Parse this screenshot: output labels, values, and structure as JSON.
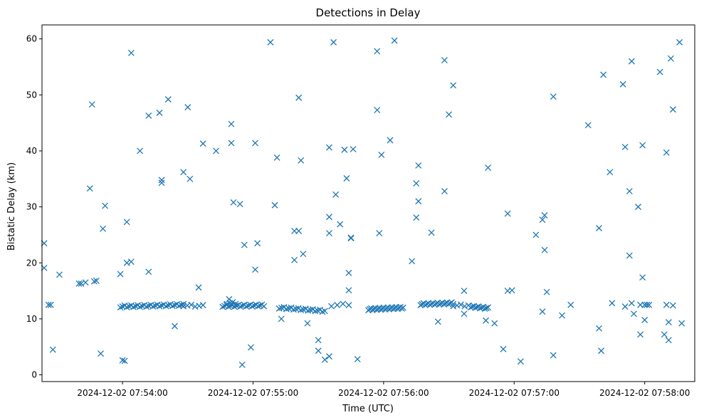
{
  "chart_data": {
    "type": "scatter",
    "title": "Detections in Delay",
    "xlabel": "Time (UTC)",
    "ylabel": "Bistatic Delay (km)",
    "x_unit": "time HH:MM:SS on 2024-12-02",
    "xlim": [
      "07:53:23",
      "07:58:23"
    ],
    "ylim": [
      -1.2,
      62.5
    ],
    "x_ticks": [
      "2024-12-02 07:54:00",
      "2024-12-02 07:55:00",
      "2024-12-02 07:56:00",
      "2024-12-02 07:57:00",
      "2024-12-02 07:58:00"
    ],
    "y_ticks": [
      "0",
      "10",
      "20",
      "30",
      "40",
      "50",
      "60"
    ],
    "marker": "x",
    "color": "#1f77b4",
    "grid": false,
    "points": [
      [
        "07:53:24",
        23.5
      ],
      [
        "07:53:24",
        19.1
      ],
      [
        "07:53:26",
        12.5
      ],
      [
        "07:53:27",
        12.5
      ],
      [
        "07:53:28",
        4.5
      ],
      [
        "07:53:31",
        17.9
      ],
      [
        "07:53:40",
        16.3
      ],
      [
        "07:53:41",
        16.3
      ],
      [
        "07:53:43",
        16.5
      ],
      [
        "07:53:45",
        33.3
      ],
      [
        "07:53:46",
        48.3
      ],
      [
        "07:53:47",
        16.7
      ],
      [
        "07:53:48",
        16.8
      ],
      [
        "07:53:50",
        3.8
      ],
      [
        "07:53:51",
        26.1
      ],
      [
        "07:53:52",
        30.2
      ],
      [
        "07:53:59",
        18.0
      ],
      [
        "07:54:00",
        2.6
      ],
      [
        "07:54:01",
        2.5
      ],
      [
        "07:54:02",
        27.3
      ],
      [
        "07:54:02",
        20.0
      ],
      [
        "07:54:04",
        57.5
      ],
      [
        "07:54:04",
        20.2
      ],
      [
        "07:54:08",
        40.0
      ],
      [
        "07:54:12",
        46.3
      ],
      [
        "07:54:12",
        18.4
      ],
      [
        "07:54:17",
        46.8
      ],
      [
        "07:54:18",
        34.8
      ],
      [
        "07:54:18",
        34.3
      ],
      [
        "07:54:21",
        49.2
      ],
      [
        "07:54:24",
        8.7
      ],
      [
        "07:54:28",
        36.2
      ],
      [
        "07:54:30",
        47.8
      ],
      [
        "07:54:31",
        35.0
      ],
      [
        "07:54:35",
        15.6
      ],
      [
        "07:54:37",
        41.3
      ],
      [
        "07:54:43",
        40.0
      ],
      [
        "07:54:49",
        13.5
      ],
      [
        "07:54:50",
        44.8
      ],
      [
        "07:54:50",
        41.4
      ],
      [
        "07:54:51",
        30.8
      ],
      [
        "07:54:54",
        30.5
      ],
      [
        "07:54:55",
        1.8
      ],
      [
        "07:54:56",
        23.2
      ],
      [
        "07:54:59",
        4.9
      ],
      [
        "07:55:01",
        41.4
      ],
      [
        "07:55:01",
        18.8
      ],
      [
        "07:55:02",
        23.5
      ],
      [
        "07:55:08",
        59.4
      ],
      [
        "07:55:10",
        30.3
      ],
      [
        "07:55:11",
        38.8
      ],
      [
        "07:55:13",
        10.0
      ],
      [
        "07:55:19",
        25.7
      ],
      [
        "07:55:19",
        20.5
      ],
      [
        "07:55:21",
        25.7
      ],
      [
        "07:55:21",
        49.5
      ],
      [
        "07:55:22",
        38.3
      ],
      [
        "07:55:23",
        21.6
      ],
      [
        "07:55:25",
        9.2
      ],
      [
        "07:55:30",
        6.2
      ],
      [
        "07:55:30",
        4.3
      ],
      [
        "07:55:33",
        2.7
      ],
      [
        "07:55:35",
        25.3
      ],
      [
        "07:55:35",
        28.2
      ],
      [
        "07:55:35",
        40.6
      ],
      [
        "07:55:35",
        3.3
      ],
      [
        "07:55:37",
        59.4
      ],
      [
        "07:55:38",
        32.2
      ],
      [
        "07:55:40",
        26.9
      ],
      [
        "07:55:42",
        40.2
      ],
      [
        "07:55:43",
        35.1
      ],
      [
        "07:55:44",
        18.2
      ],
      [
        "07:55:44",
        15.1
      ],
      [
        "07:55:45",
        24.5
      ],
      [
        "07:55:45",
        24.4
      ],
      [
        "07:55:46",
        40.3
      ],
      [
        "07:55:48",
        2.8
      ],
      [
        "07:55:57",
        57.8
      ],
      [
        "07:55:57",
        47.3
      ],
      [
        "07:55:58",
        25.3
      ],
      [
        "07:55:59",
        39.3
      ],
      [
        "07:56:03",
        41.9
      ],
      [
        "07:56:05",
        59.7
      ],
      [
        "07:56:13",
        20.3
      ],
      [
        "07:56:15",
        28.1
      ],
      [
        "07:56:15",
        34.2
      ],
      [
        "07:56:16",
        37.4
      ],
      [
        "07:56:16",
        31.0
      ],
      [
        "07:56:22",
        25.4
      ],
      [
        "07:56:25",
        9.5
      ],
      [
        "07:56:28",
        56.2
      ],
      [
        "07:56:28",
        32.8
      ],
      [
        "07:56:30",
        46.5
      ],
      [
        "07:56:32",
        51.7
      ],
      [
        "07:56:37",
        15.0
      ],
      [
        "07:56:37",
        10.9
      ],
      [
        "07:56:47",
        9.7
      ],
      [
        "07:56:48",
        37.0
      ],
      [
        "07:56:51",
        9.2
      ],
      [
        "07:56:55",
        4.6
      ],
      [
        "07:56:57",
        28.8
      ],
      [
        "07:56:57",
        15.0
      ],
      [
        "07:56:59",
        15.1
      ],
      [
        "07:57:03",
        2.4
      ],
      [
        "07:57:10",
        25.0
      ],
      [
        "07:57:13",
        11.3
      ],
      [
        "07:57:13",
        27.7
      ],
      [
        "07:57:14",
        28.5
      ],
      [
        "07:57:14",
        22.3
      ],
      [
        "07:57:15",
        14.8
      ],
      [
        "07:57:18",
        49.7
      ],
      [
        "07:57:18",
        3.5
      ],
      [
        "07:57:22",
        10.6
      ],
      [
        "07:57:26",
        12.5
      ],
      [
        "07:57:34",
        44.6
      ],
      [
        "07:57:39",
        26.2
      ],
      [
        "07:57:39",
        8.3
      ],
      [
        "07:57:40",
        4.3
      ],
      [
        "07:57:41",
        53.6
      ],
      [
        "07:57:44",
        36.2
      ],
      [
        "07:57:45",
        12.8
      ],
      [
        "07:57:50",
        51.9
      ],
      [
        "07:57:51",
        40.7
      ],
      [
        "07:57:51",
        12.2
      ],
      [
        "07:57:53",
        32.8
      ],
      [
        "07:57:53",
        21.3
      ],
      [
        "07:57:54",
        56.0
      ],
      [
        "07:57:54",
        12.8
      ],
      [
        "07:57:55",
        10.9
      ],
      [
        "07:57:57",
        30.0
      ],
      [
        "07:57:58",
        12.5
      ],
      [
        "07:57:58",
        7.2
      ],
      [
        "07:57:59",
        17.4
      ],
      [
        "07:57:59",
        41.0
      ],
      [
        "07:58:00",
        9.8
      ],
      [
        "07:58:00",
        12.5
      ],
      [
        "07:58:01",
        12.5
      ],
      [
        "07:58:02",
        12.5
      ],
      [
        "07:58:07",
        54.1
      ],
      [
        "07:58:09",
        7.2
      ],
      [
        "07:58:10",
        12.5
      ],
      [
        "07:58:10",
        39.7
      ],
      [
        "07:58:11",
        9.4
      ],
      [
        "07:58:11",
        6.2
      ],
      [
        "07:58:12",
        56.5
      ],
      [
        "07:58:13",
        47.4
      ],
      [
        "07:58:13",
        12.4
      ],
      [
        "07:58:16",
        59.4
      ],
      [
        "07:58:17",
        9.2
      ]
    ],
    "clusters": [
      {
        "x_start": "07:53:59",
        "x_end": "07:54:28",
        "y_start": 12.2,
        "y_end": 12.5,
        "count": 30
      },
      {
        "x_start": "07:54:28",
        "x_end": "07:54:37",
        "y_start": 12.4,
        "y_end": 12.3,
        "count": 6
      },
      {
        "x_start": "07:54:46",
        "x_end": "07:55:05",
        "y_start": 12.3,
        "y_end": 12.4,
        "count": 22
      },
      {
        "x_start": "07:54:48",
        "x_end": "07:54:52",
        "y_start": 12.8,
        "y_end": 12.8,
        "count": 4
      },
      {
        "x_start": "07:55:12",
        "x_end": "07:55:33",
        "y_start": 12.0,
        "y_end": 11.4,
        "count": 20
      },
      {
        "x_start": "07:55:36",
        "x_end": "07:55:44",
        "y_start": 12.4,
        "y_end": 12.6,
        "count": 4
      },
      {
        "x_start": "07:55:53",
        "x_end": "07:56:09",
        "y_start": 11.7,
        "y_end": 12.0,
        "count": 26
      },
      {
        "x_start": "07:56:17",
        "x_end": "07:56:32",
        "y_start": 12.6,
        "y_end": 12.8,
        "count": 22
      },
      {
        "x_start": "07:56:32",
        "x_end": "07:56:39",
        "y_start": 12.4,
        "y_end": 12.4,
        "count": 5
      },
      {
        "x_start": "07:56:40",
        "x_end": "07:56:48",
        "y_start": 12.2,
        "y_end": 11.9,
        "count": 12
      }
    ]
  }
}
